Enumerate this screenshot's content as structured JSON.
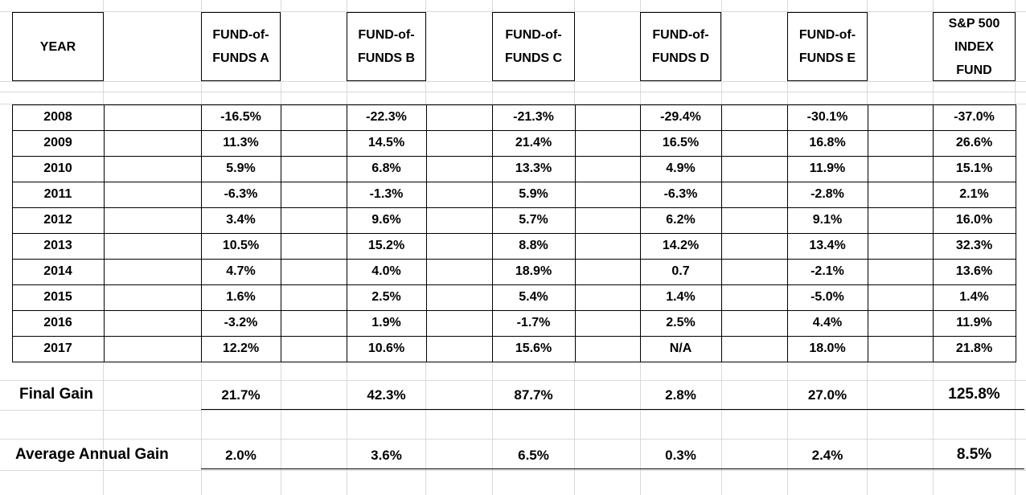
{
  "table": {
    "headers": [
      "YEAR",
      "FUND-of-FUNDS A",
      "FUND-of-FUNDS B",
      "FUND-of-FUNDS C",
      "FUND-of-FUNDS D",
      "FUND-of-FUNDS E",
      "S&P 500 INDEX FUND"
    ],
    "rows": [
      [
        "2008",
        "-16.5%",
        "-22.3%",
        "-21.3%",
        "-29.4%",
        "-30.1%",
        "-37.0%"
      ],
      [
        "2009",
        "11.3%",
        "14.5%",
        "21.4%",
        "16.5%",
        "16.8%",
        "26.6%"
      ],
      [
        "2010",
        "5.9%",
        "6.8%",
        "13.3%",
        "4.9%",
        "11.9%",
        "15.1%"
      ],
      [
        "2011",
        "-6.3%",
        "-1.3%",
        "5.9%",
        "-6.3%",
        "-2.8%",
        "2.1%"
      ],
      [
        "2012",
        "3.4%",
        "9.6%",
        "5.7%",
        "6.2%",
        "9.1%",
        "16.0%"
      ],
      [
        "2013",
        "10.5%",
        "15.2%",
        "8.8%",
        "14.2%",
        "13.4%",
        "32.3%"
      ],
      [
        "2014",
        "4.7%",
        "4.0%",
        "18.9%",
        "0.7",
        "-2.1%",
        "13.6%"
      ],
      [
        "2015",
        "1.6%",
        "2.5%",
        "5.4%",
        "1.4%",
        "-5.0%",
        "1.4%"
      ],
      [
        "2016",
        "-3.2%",
        "1.9%",
        "-1.7%",
        "2.5%",
        "4.4%",
        "11.9%"
      ],
      [
        "2017",
        "12.2%",
        "10.6%",
        "15.6%",
        "N/A",
        "18.0%",
        "21.8%"
      ]
    ],
    "final_gain": {
      "label": "Final Gain",
      "values": [
        "21.7%",
        "42.3%",
        "87.7%",
        "2.8%",
        "27.0%",
        "125.8%"
      ]
    },
    "average_annual_gain": {
      "label": "Average Annual Gain",
      "values": [
        "2.0%",
        "3.6%",
        "6.5%",
        "0.3%",
        "2.4%",
        "8.5%"
      ]
    }
  }
}
